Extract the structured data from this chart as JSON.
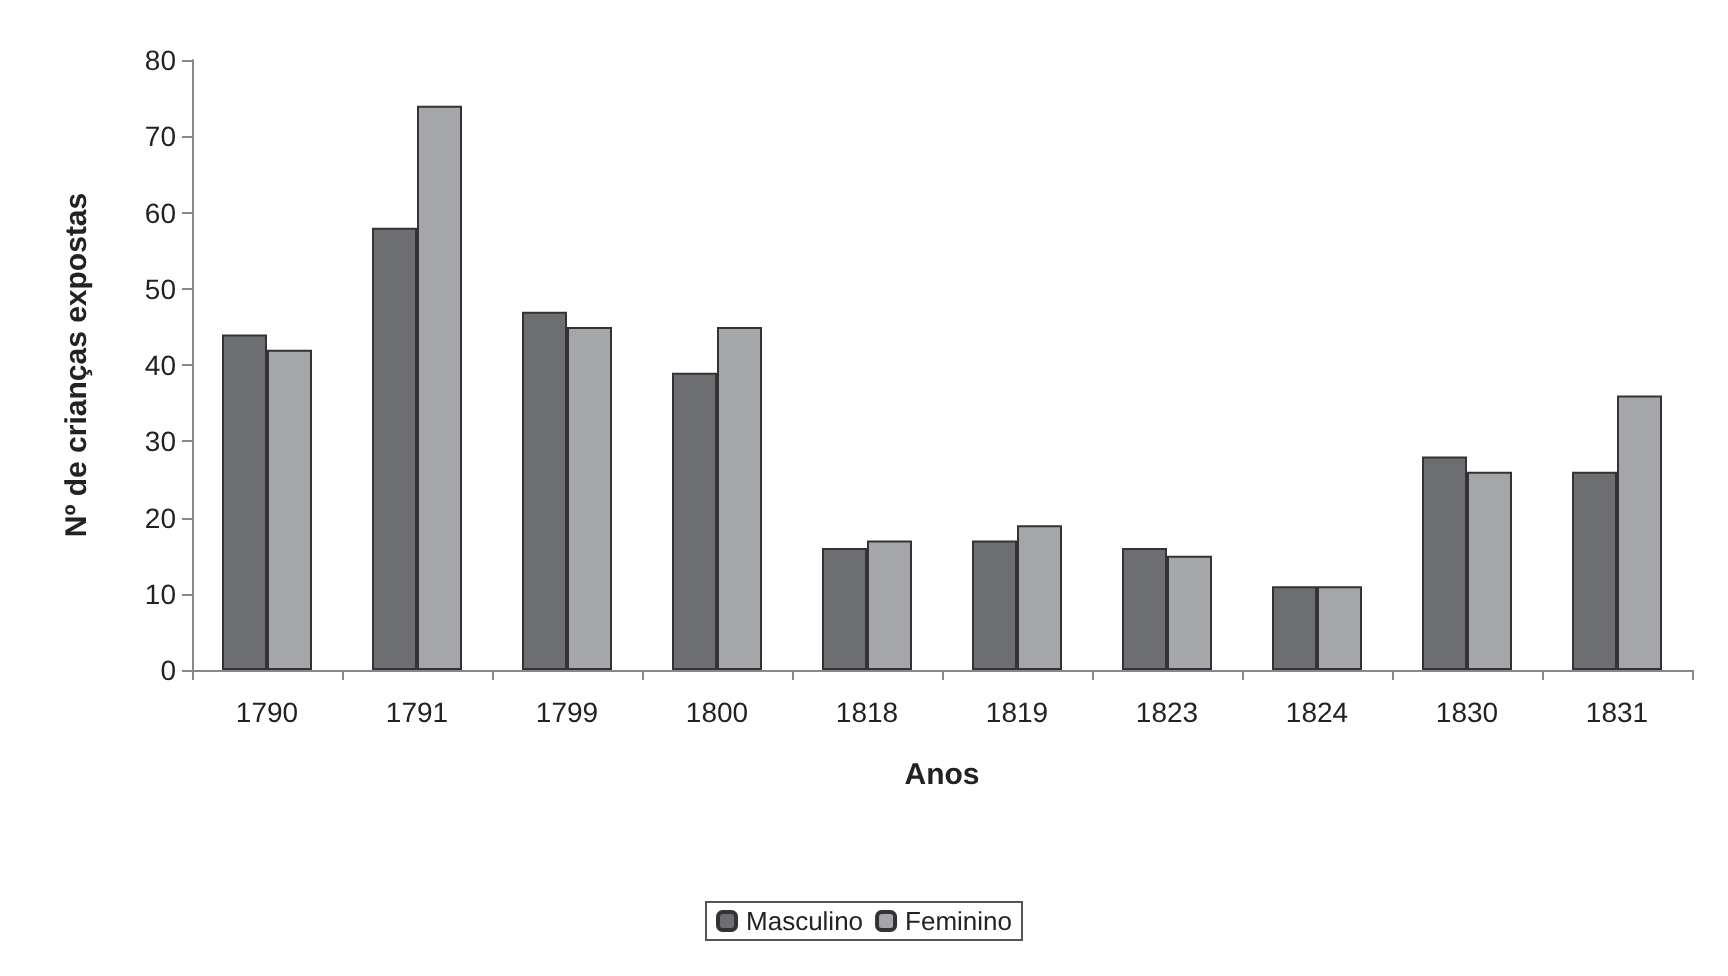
{
  "chart_data": {
    "type": "bar",
    "xlabel": "Anos",
    "ylabel": "Nº de crianças expostas",
    "categories": [
      "1790",
      "1791",
      "1799",
      "1800",
      "1818",
      "1819",
      "1823",
      "1824",
      "1830",
      "1831"
    ],
    "series": [
      {
        "name": "Masculino",
        "color": "#6d6e72",
        "values": [
          44,
          58,
          47,
          39,
          16,
          17,
          16,
          11,
          28,
          26
        ]
      },
      {
        "name": "Feminino",
        "color": "#a5a6aa",
        "values": [
          42,
          74,
          45,
          45,
          17,
          19,
          15,
          11,
          26,
          36
        ]
      }
    ],
    "ylim": [
      0,
      80
    ],
    "yticks": [
      0,
      10,
      20,
      30,
      40,
      50,
      60,
      70,
      80
    ],
    "grid": false,
    "legend": "bottom"
  }
}
